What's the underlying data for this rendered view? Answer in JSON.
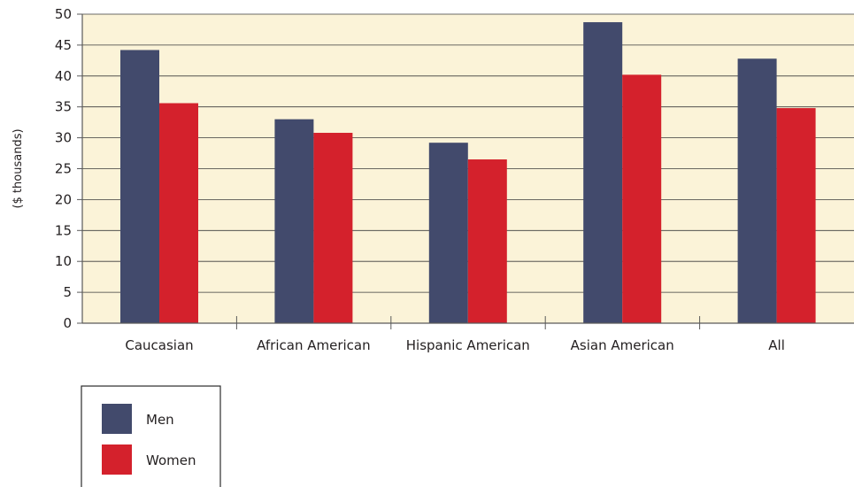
{
  "colors": {
    "plot_background": "#fbf3d8",
    "gridline": "#3a3a3a",
    "axis": "#5a5a5a",
    "men": "#424a6c",
    "women": "#d4212c"
  },
  "chart_data": {
    "type": "bar",
    "title": "",
    "xlabel": "",
    "ylabel": "($ thousands)",
    "ylim": [
      0,
      50
    ],
    "yticks": [
      0,
      5,
      10,
      15,
      20,
      25,
      30,
      35,
      40,
      45,
      50
    ],
    "grid": true,
    "legend_placement": "bottom-left",
    "categories": [
      "Caucasian",
      "African American",
      "Hispanic American",
      "Asian American",
      "All"
    ],
    "series": [
      {
        "name": "Men",
        "color": "#424a6c",
        "values": [
          44.2,
          33.0,
          29.2,
          48.7,
          42.8
        ]
      },
      {
        "name": "Women",
        "color": "#d4212c",
        "values": [
          35.6,
          30.8,
          26.5,
          40.2,
          34.8
        ]
      }
    ]
  }
}
